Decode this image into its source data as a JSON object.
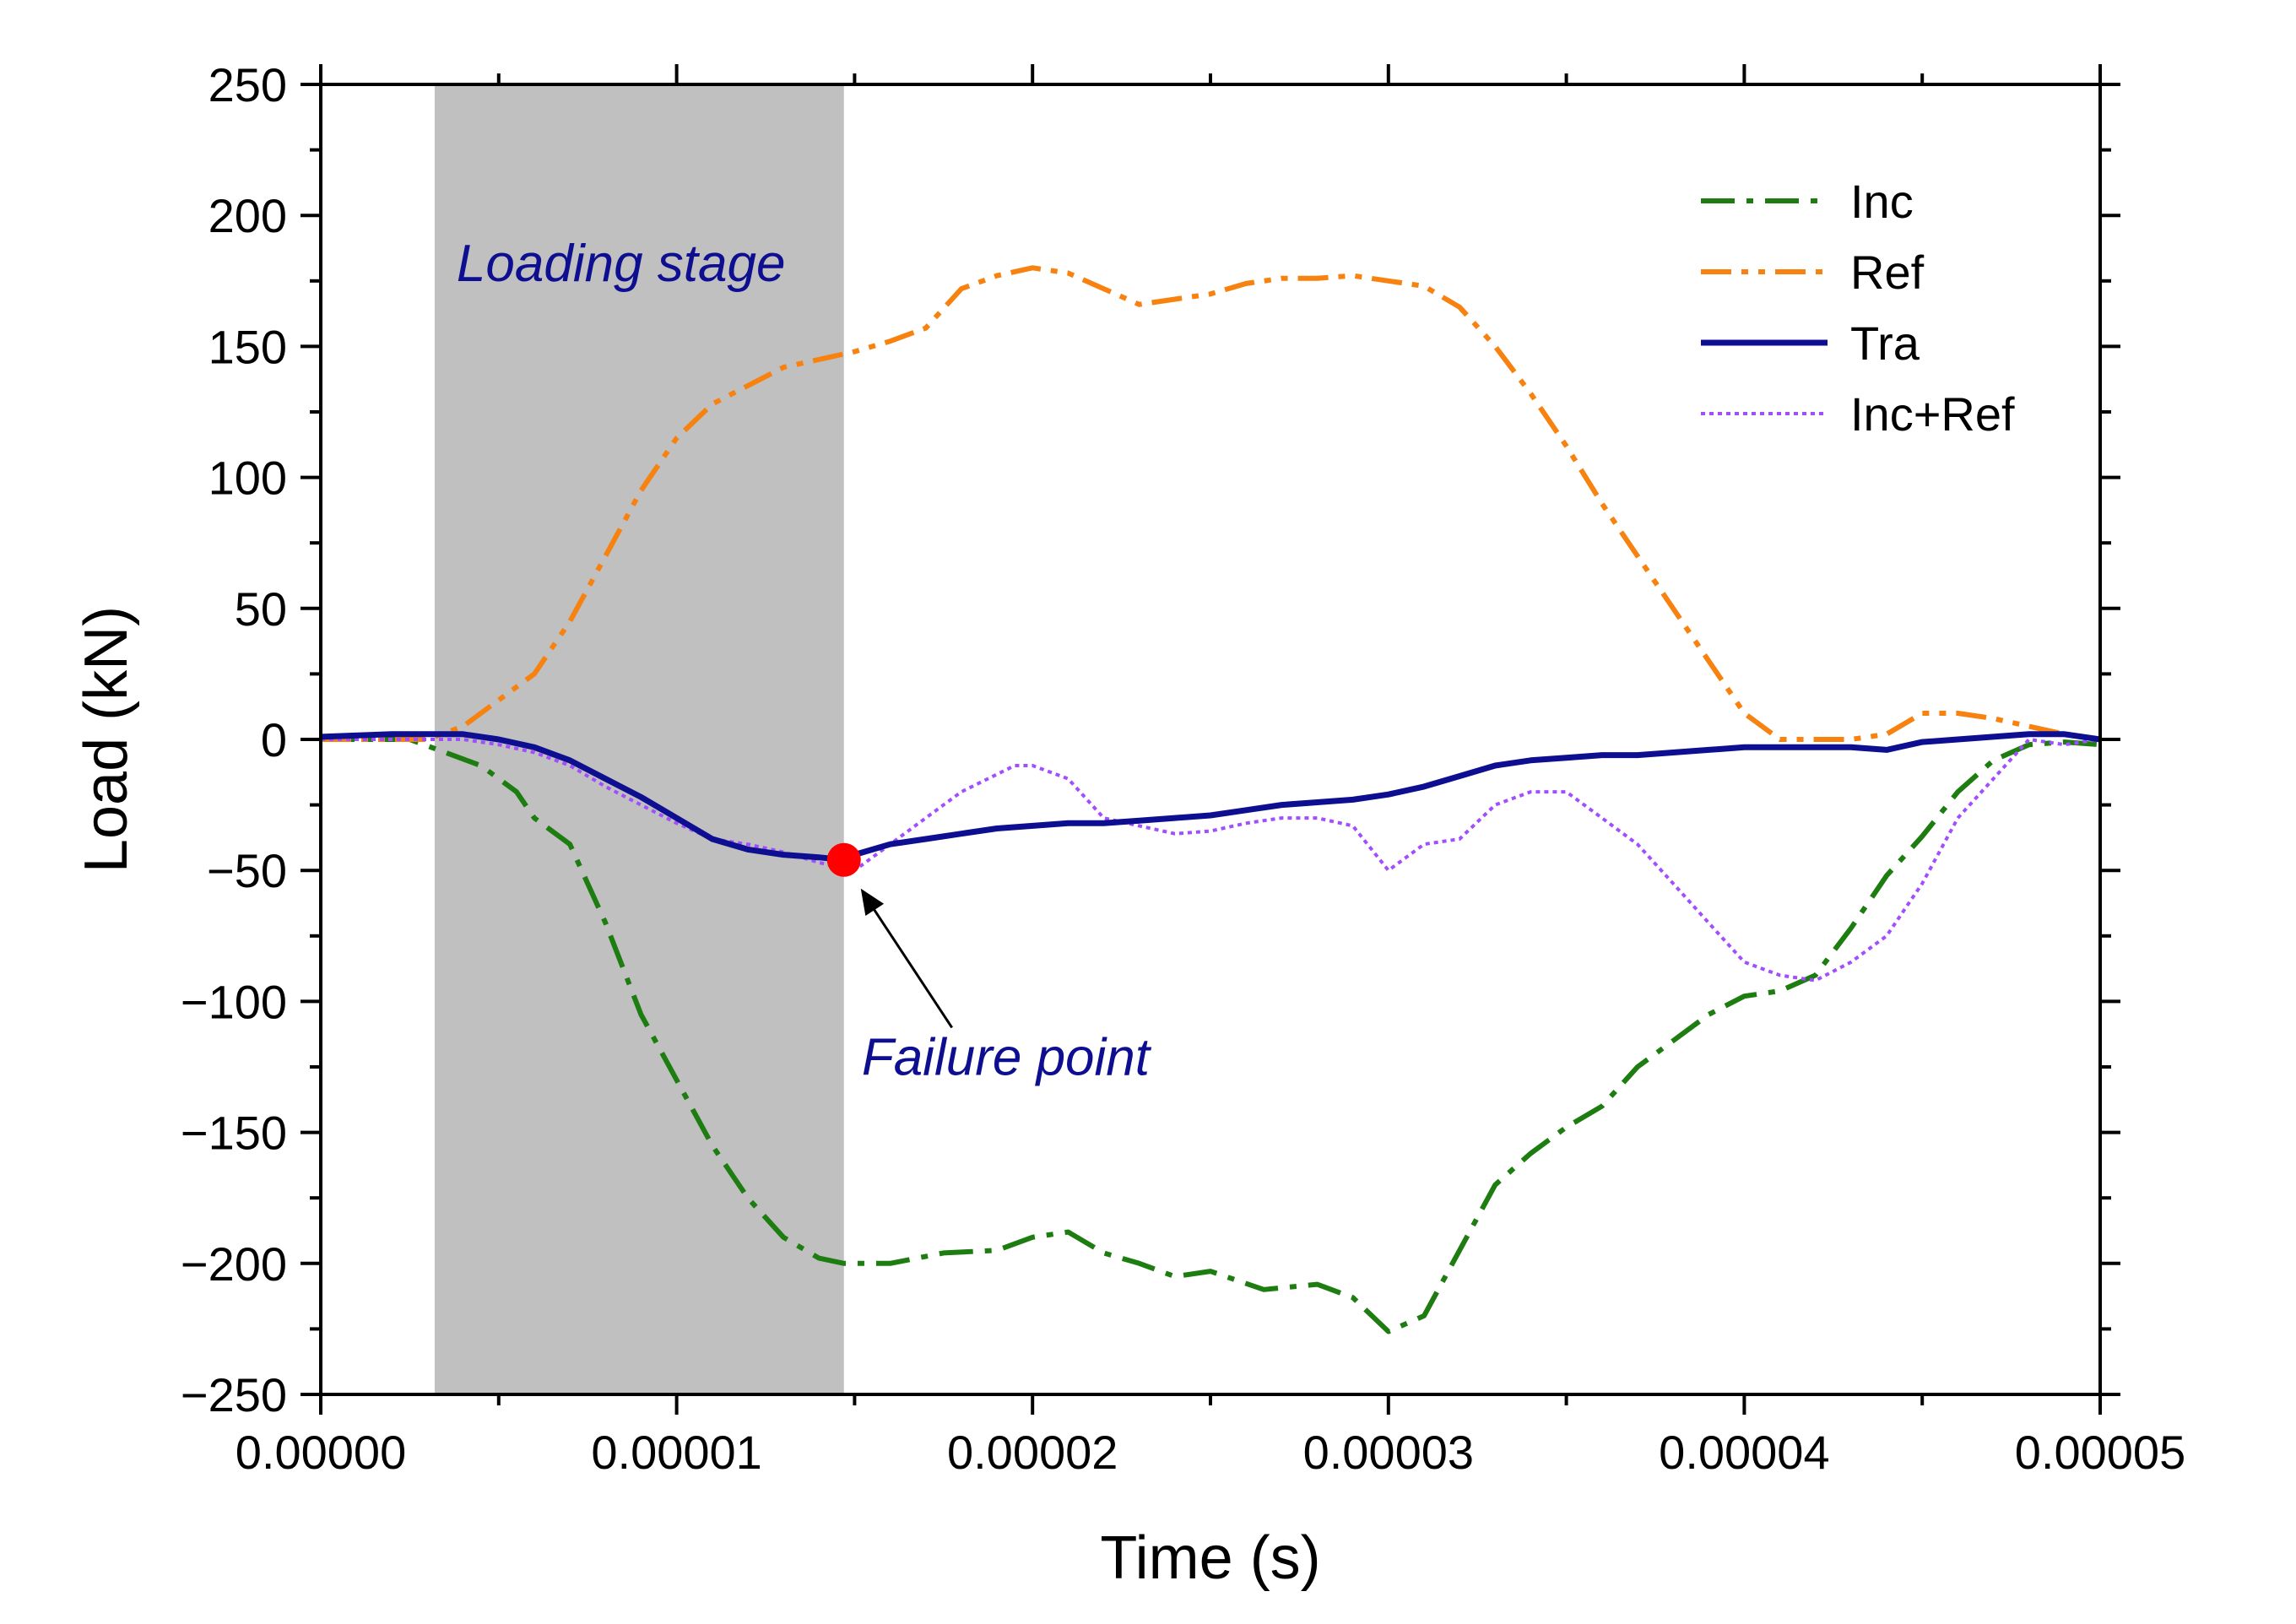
{
  "chart_data": {
    "type": "line",
    "title": "",
    "xlabel": "Time (s)",
    "ylabel": "Load (kN)",
    "xlim": [
      0,
      5e-05
    ],
    "ylim": [
      -250,
      250
    ],
    "x_ticks": [
      0,
      1e-05,
      2e-05,
      3e-05,
      4e-05,
      5e-05
    ],
    "x_tick_labels": [
      "0.00000",
      "0.00001",
      "0.00002",
      "0.00003",
      "0.00004",
      "0.00005"
    ],
    "y_ticks": [
      250,
      200,
      150,
      100,
      50,
      0,
      -50,
      -100,
      -150,
      -200,
      -250
    ],
    "y_tick_labels": [
      "250",
      "200",
      "150",
      "100",
      "50",
      "0",
      "−50",
      "−100",
      "−150",
      "−200",
      "−250"
    ],
    "grid": false,
    "legend_position": "top-right",
    "series": [
      {
        "name": "Inc",
        "color": "#1e7d10",
        "style": "dash-dot",
        "x": [
          0,
          2.5e-06,
          3.5e-06,
          4.5e-06,
          5.5e-06,
          6e-06,
          7e-06,
          8e-06,
          9e-06,
          1e-05,
          1.1e-05,
          1.2e-05,
          1.3e-05,
          1.4e-05,
          1.47e-05,
          1.6e-05,
          1.75e-05,
          1.9e-05,
          2e-05,
          2.1e-05,
          2.2e-05,
          2.3e-05,
          2.4e-05,
          2.5e-05,
          2.65e-05,
          2.8e-05,
          2.9e-05,
          3e-05,
          3.1e-05,
          3.2e-05,
          3.3e-05,
          3.4e-05,
          3.5e-05,
          3.6e-05,
          3.7e-05,
          3.8e-05,
          3.9e-05,
          4e-05,
          4.1e-05,
          4.2e-05,
          4.3e-05,
          4.4e-05,
          4.5e-05,
          4.6e-05,
          4.7e-05,
          4.8e-05,
          4.9e-05,
          5e-05
        ],
        "y": [
          0,
          0,
          -5,
          -10,
          -20,
          -30,
          -40,
          -70,
          -105,
          -130,
          -155,
          -175,
          -190,
          -198,
          -200,
          -200,
          -196,
          -195,
          -190,
          -188,
          -196,
          -200,
          -205,
          -203,
          -210,
          -208,
          -213,
          -226,
          -220,
          -195,
          -170,
          -158,
          -148,
          -140,
          -125,
          -115,
          -105,
          -98,
          -96,
          -90,
          -72,
          -52,
          -37,
          -20,
          -8,
          -2,
          -1,
          -2
        ]
      },
      {
        "name": "Ref",
        "color": "#f7820f",
        "style": "dash-dot-dot",
        "x": [
          0,
          3e-06,
          4e-06,
          5e-06,
          6e-06,
          7e-06,
          8e-06,
          9e-06,
          1e-05,
          1.1e-05,
          1.2e-05,
          1.3e-05,
          1.4e-05,
          1.5e-05,
          1.6e-05,
          1.7e-05,
          1.8e-05,
          1.9e-05,
          2e-05,
          2.1e-05,
          2.2e-05,
          2.3e-05,
          2.4e-05,
          2.5e-05,
          2.6e-05,
          2.7e-05,
          2.8e-05,
          2.9e-05,
          3e-05,
          3.1e-05,
          3.2e-05,
          3.3e-05,
          3.4e-05,
          3.5e-05,
          3.6e-05,
          3.7e-05,
          3.8e-05,
          3.9e-05,
          4e-05,
          4.1e-05,
          4.2e-05,
          4.3e-05,
          4.4e-05,
          4.5e-05,
          4.6e-05,
          4.7e-05,
          4.8e-05,
          4.9e-05,
          5e-05
        ],
        "y": [
          0,
          0,
          5,
          15,
          25,
          45,
          70,
          95,
          115,
          128,
          135,
          142,
          145,
          148,
          152,
          157,
          172,
          177,
          180,
          178,
          172,
          166,
          168,
          170,
          174,
          176,
          176,
          177,
          175,
          173,
          165,
          150,
          132,
          112,
          90,
          70,
          50,
          30,
          10,
          0,
          0,
          0,
          2,
          10,
          10,
          8,
          5,
          2,
          0
        ]
      },
      {
        "name": "Tra",
        "color": "#0e0e91",
        "style": "solid",
        "x": [
          0,
          2e-06,
          3e-06,
          4e-06,
          5e-06,
          6e-06,
          7e-06,
          8e-06,
          9e-06,
          1e-05,
          1.1e-05,
          1.2e-05,
          1.3e-05,
          1.4e-05,
          1.47e-05,
          1.5e-05,
          1.6e-05,
          1.7e-05,
          1.8e-05,
          1.9e-05,
          2e-05,
          2.1e-05,
          2.2e-05,
          2.3e-05,
          2.4e-05,
          2.5e-05,
          2.6e-05,
          2.7e-05,
          2.8e-05,
          2.9e-05,
          3e-05,
          3.1e-05,
          3.2e-05,
          3.3e-05,
          3.4e-05,
          3.5e-05,
          3.6e-05,
          3.7e-05,
          3.8e-05,
          3.9e-05,
          4e-05,
          4.1e-05,
          4.2e-05,
          4.3e-05,
          4.4e-05,
          4.5e-05,
          4.6e-05,
          4.7e-05,
          4.8e-05,
          4.9e-05,
          5e-05
        ],
        "y": [
          1,
          2,
          2,
          2,
          0,
          -3,
          -8,
          -15,
          -22,
          -30,
          -38,
          -42,
          -44,
          -45,
          -46,
          -44,
          -40,
          -38,
          -36,
          -34,
          -33,
          -32,
          -32,
          -31,
          -30,
          -29,
          -27,
          -25,
          -24,
          -23,
          -21,
          -18,
          -14,
          -10,
          -8,
          -7,
          -6,
          -6,
          -5,
          -4,
          -3,
          -3,
          -3,
          -3,
          -4,
          -1,
          0,
          1,
          2,
          2,
          0
        ]
      },
      {
        "name": "Inc+Ref",
        "color": "#a24dff",
        "style": "dotted",
        "x": [
          0,
          3e-06,
          4e-06,
          5e-06,
          6e-06,
          7e-06,
          8e-06,
          9e-06,
          1e-05,
          1.1e-05,
          1.2e-05,
          1.3e-05,
          1.4e-05,
          1.5e-05,
          1.6e-05,
          1.7e-05,
          1.8e-05,
          1.95e-05,
          2e-05,
          2.1e-05,
          2.2e-05,
          2.3e-05,
          2.4e-05,
          2.5e-05,
          2.6e-05,
          2.7e-05,
          2.8e-05,
          2.9e-05,
          3e-05,
          3.1e-05,
          3.2e-05,
          3.3e-05,
          3.4e-05,
          3.5e-05,
          3.6e-05,
          3.7e-05,
          3.8e-05,
          3.9e-05,
          4e-05,
          4.1e-05,
          4.2e-05,
          4.3e-05,
          4.4e-05,
          4.5e-05,
          4.6e-05,
          4.7e-05,
          4.8e-05,
          4.9e-05,
          5e-05
        ],
        "y": [
          0,
          0,
          0,
          -2,
          -5,
          -10,
          -18,
          -25,
          -32,
          -38,
          -40,
          -43,
          -47,
          -50,
          -40,
          -30,
          -20,
          -10,
          -10,
          -15,
          -30,
          -33,
          -36,
          -35,
          -32,
          -30,
          -30,
          -33,
          -50,
          -40,
          -38,
          -25,
          -20,
          -20,
          -30,
          -40,
          -55,
          -70,
          -85,
          -90,
          -92,
          -85,
          -75,
          -55,
          -30,
          -15,
          0,
          -2,
          0
        ]
      }
    ],
    "shaded_region": {
      "label": "Loading stage",
      "x_range": [
        3.2e-06,
        1.47e-05
      ],
      "color": "#c0c0c0"
    },
    "failure_point": {
      "label": "Failure point",
      "x": 1.47e-05,
      "y": -46,
      "marker_color": "#ff0000",
      "text_color": "#0e0e91"
    }
  }
}
